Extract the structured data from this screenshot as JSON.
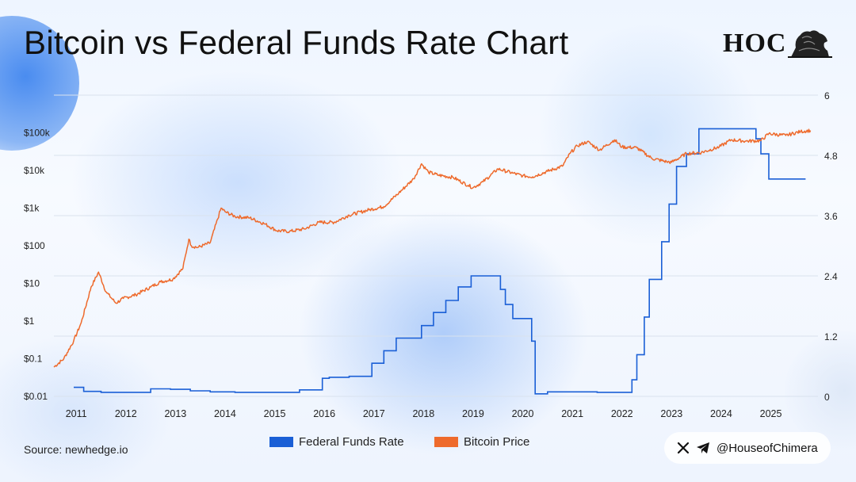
{
  "title": "Bitcoin vs Federal Funds Rate Chart",
  "logo": {
    "text": "HOC",
    "emblem": "lion-icon"
  },
  "source": "Source: newhedge.io",
  "social": {
    "icons": [
      "x-icon",
      "telegram-icon"
    ],
    "handle": "@HouseofChimera"
  },
  "colors": {
    "fed": "#1a5fd6",
    "btc": "#ee6a2c",
    "grid": "#d9e2ee"
  },
  "chart_data": {
    "type": "line",
    "title": "Bitcoin vs Federal Funds Rate Chart",
    "x_ticks": [
      "2011",
      "2012",
      "2013",
      "2014",
      "2015",
      "2016",
      "2017",
      "2018",
      "2019",
      "2020",
      "2021",
      "2022",
      "2023",
      "2024",
      "2025"
    ],
    "x_range": [
      2010.55,
      2025.95
    ],
    "y_left": {
      "scale": "log",
      "ticks": [
        "$0.01",
        "$0.1",
        "$1",
        "$10",
        "$100",
        "$1k",
        "$10k",
        "$100k"
      ],
      "range": [
        0.01,
        1000000
      ]
    },
    "y_right": {
      "scale": "linear",
      "ticks": [
        "0",
        "1.2",
        "2.4",
        "3.6",
        "4.8",
        "6"
      ],
      "range": [
        0,
        6
      ]
    },
    "grid": true,
    "legend": {
      "placement": "bottom-center",
      "entries": [
        "Federal Funds Rate",
        "Bitcoin Price"
      ]
    },
    "series": [
      {
        "name": "Federal Funds Rate",
        "axis": "right",
        "step": true,
        "x": [
          2010.95,
          2011.15,
          2011.5,
          2011.8,
          2012.5,
          2012.9,
          2013.3,
          2013.7,
          2014.2,
          2015.5,
          2015.85,
          2015.96,
          2016.1,
          2016.5,
          2016.96,
          2017.2,
          2017.45,
          2017.6,
          2017.96,
          2018.2,
          2018.45,
          2018.7,
          2018.96,
          2019.2,
          2019.55,
          2019.65,
          2019.8,
          2020.18,
          2020.25,
          2020.5,
          2021.5,
          2022.0,
          2022.2,
          2022.3,
          2022.45,
          2022.55,
          2022.8,
          2022.95,
          2023.1,
          2023.3,
          2023.55,
          2024.55,
          2024.7,
          2024.8,
          2024.96,
          2025.7
        ],
        "values": [
          0.18,
          0.1,
          0.08,
          0.08,
          0.15,
          0.14,
          0.11,
          0.09,
          0.08,
          0.13,
          0.13,
          0.36,
          0.38,
          0.4,
          0.66,
          0.91,
          1.16,
          1.16,
          1.41,
          1.67,
          1.91,
          2.18,
          2.4,
          2.4,
          2.13,
          1.83,
          1.55,
          1.1,
          0.05,
          0.09,
          0.08,
          0.08,
          0.33,
          0.83,
          1.58,
          2.33,
          3.08,
          3.83,
          4.58,
          4.83,
          5.33,
          5.33,
          5.13,
          4.83,
          4.33,
          4.33
        ]
      },
      {
        "name": "Bitcoin Price",
        "axis": "left",
        "x": [
          2010.55,
          2010.75,
          2010.95,
          2011.1,
          2011.3,
          2011.45,
          2011.6,
          2011.8,
          2011.95,
          2012.2,
          2012.5,
          2012.7,
          2012.95,
          2013.15,
          2013.27,
          2013.32,
          2013.45,
          2013.7,
          2013.92,
          2014.0,
          2014.2,
          2014.5,
          2014.8,
          2015.05,
          2015.3,
          2015.6,
          2015.9,
          2016.2,
          2016.5,
          2016.9,
          2017.2,
          2017.5,
          2017.8,
          2017.96,
          2018.1,
          2018.3,
          2018.6,
          2018.9,
          2019.0,
          2019.2,
          2019.5,
          2019.8,
          2020.0,
          2020.2,
          2020.5,
          2020.8,
          2020.96,
          2021.1,
          2021.3,
          2021.55,
          2021.85,
          2022.0,
          2022.3,
          2022.6,
          2022.9,
          2023.0,
          2023.3,
          2023.6,
          2023.96,
          2024.2,
          2024.5,
          2024.8,
          2024.96,
          2025.3,
          2025.6,
          2025.8
        ],
        "values": [
          0.06,
          0.1,
          0.3,
          0.9,
          8,
          20,
          6,
          3,
          4,
          5,
          8,
          11,
          13,
          25,
          150,
          100,
          90,
          120,
          1000,
          800,
          600,
          550,
          380,
          250,
          240,
          280,
          420,
          420,
          650,
          900,
          1100,
          2500,
          6000,
          15000,
          9000,
          7500,
          6500,
          4000,
          3500,
          5000,
          11000,
          8500,
          7200,
          6800,
          9500,
          13000,
          29000,
          45000,
          58000,
          35000,
          65000,
          42000,
          40000,
          21000,
          17000,
          16500,
          28000,
          30000,
          42000,
          65000,
          60000,
          62000,
          95000,
          85000,
          108000,
          115000
        ]
      }
    ]
  }
}
